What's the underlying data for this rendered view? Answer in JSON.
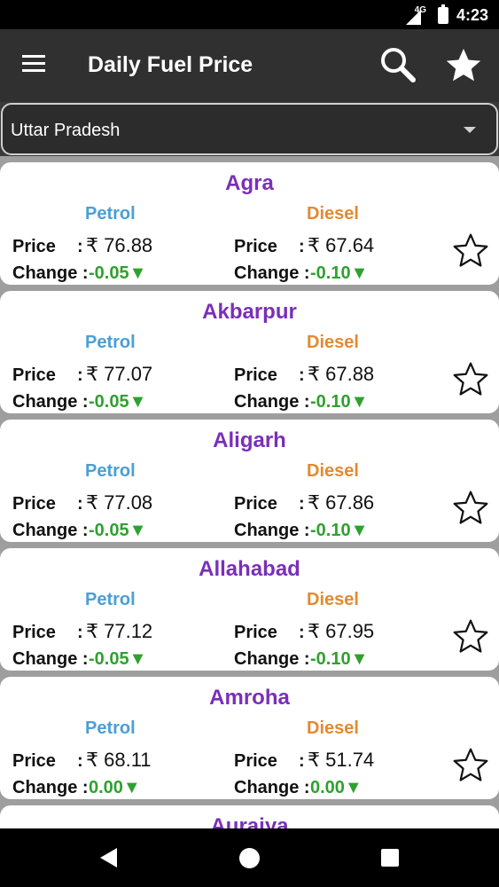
{
  "status_bar": {
    "network": "4G",
    "time": "4:23"
  },
  "app_bar": {
    "title": "Daily Fuel Price"
  },
  "state_select": {
    "value": "Uttar Pradesh"
  },
  "labels": {
    "petrol": "Petrol",
    "diesel": "Diesel",
    "price": "Price",
    "price_sep": ":",
    "change": "Change :"
  },
  "cities": [
    {
      "name": "Agra",
      "petrol_price": "₹ 76.88",
      "petrol_change": "-0.05▼",
      "diesel_price": "₹ 67.64",
      "diesel_change": "-0.10▼"
    },
    {
      "name": "Akbarpur",
      "petrol_price": "₹ 77.07",
      "petrol_change": "-0.05▼",
      "diesel_price": "₹ 67.88",
      "diesel_change": "-0.10▼"
    },
    {
      "name": "Aligarh",
      "petrol_price": "₹ 77.08",
      "petrol_change": "-0.05▼",
      "diesel_price": "₹ 67.86",
      "diesel_change": "-0.10▼"
    },
    {
      "name": "Allahabad",
      "petrol_price": "₹ 77.12",
      "petrol_change": "-0.05▼",
      "diesel_price": "₹ 67.95",
      "diesel_change": "-0.10▼"
    },
    {
      "name": "Amroha",
      "petrol_price": "₹ 68.11",
      "petrol_change": "0.00▼",
      "diesel_price": "₹ 51.74",
      "diesel_change": "0.00▼"
    },
    {
      "name": "Auraiya"
    }
  ],
  "colors": {
    "city": "#7a2fb8",
    "petrol": "#4a9fd6",
    "diesel": "#e38a2f",
    "change": "#2fa12f",
    "app_bar": "#303030"
  },
  "icons": {
    "menu": "menu-icon",
    "search": "search-icon",
    "favorite": "star-icon",
    "back": "back-icon",
    "home": "home-icon",
    "recents": "recents-icon"
  }
}
